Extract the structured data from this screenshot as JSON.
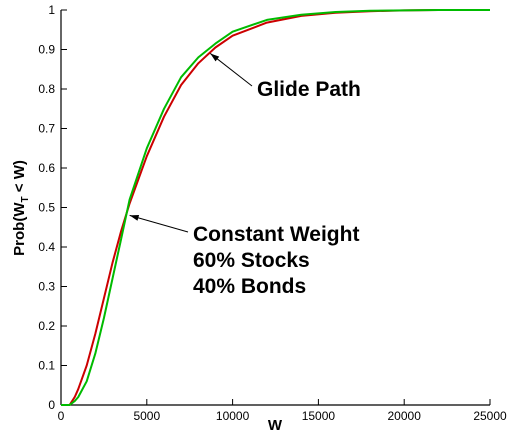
{
  "chart_data": {
    "type": "line",
    "title": "",
    "xlabel": "W",
    "ylabel_main": "Prob(W",
    "ylabel_sub": "T",
    "ylabel_tail": " < W)",
    "xlim": [
      0,
      25000
    ],
    "ylim": [
      0,
      1
    ],
    "xticks": [
      0,
      5000,
      10000,
      15000,
      20000,
      25000
    ],
    "yticks": [
      0,
      0.1,
      0.2,
      0.3,
      0.4,
      0.5,
      0.6,
      0.7,
      0.8,
      0.9,
      1
    ],
    "grid": false,
    "series": [
      {
        "color": "#cc0000",
        "x": [
          0,
          500,
          800,
          1000,
          1500,
          2000,
          2500,
          3000,
          3500,
          4000,
          5000,
          6000,
          7000,
          8000,
          9000,
          10000,
          12000,
          14000,
          16000,
          18000,
          20000,
          22000,
          25000
        ],
        "y": [
          0,
          0.0,
          0.02,
          0.04,
          0.1,
          0.18,
          0.27,
          0.36,
          0.44,
          0.51,
          0.63,
          0.73,
          0.81,
          0.865,
          0.905,
          0.935,
          0.968,
          0.985,
          0.993,
          0.997,
          0.999,
          1.0,
          1.0
        ]
      },
      {
        "color": "#00bb00",
        "x": [
          0,
          500,
          800,
          1000,
          1500,
          2000,
          2500,
          3000,
          3500,
          4000,
          5000,
          6000,
          7000,
          8000,
          9000,
          10000,
          12000,
          14000,
          16000,
          18000,
          20000,
          22000,
          25000
        ],
        "y": [
          0,
          0.0,
          0.01,
          0.02,
          0.06,
          0.13,
          0.22,
          0.32,
          0.42,
          0.52,
          0.65,
          0.75,
          0.83,
          0.88,
          0.915,
          0.945,
          0.975,
          0.988,
          0.995,
          0.998,
          0.999,
          1.0,
          1.0
        ]
      }
    ],
    "annotations": [
      {
        "lines": [
          "Glide Path"
        ],
        "point": [
          8700,
          0.89
        ]
      },
      {
        "lines": [
          "Constant Weight",
          "60% Stocks",
          "40% Bonds"
        ],
        "point": [
          4000,
          0.48
        ]
      }
    ]
  }
}
